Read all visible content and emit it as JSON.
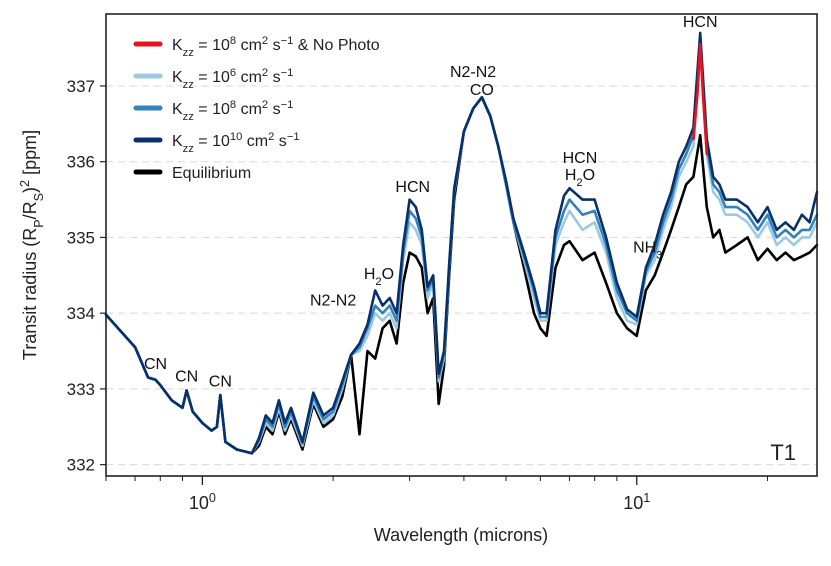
{
  "chart_data": {
    "type": "line",
    "title": "",
    "xlabel": "Wavelength (microns)",
    "ylabel_parts": [
      "Transit radius (R",
      "P",
      "/R",
      "S",
      ")",
      "2",
      " [ppm]"
    ],
    "x_scale": "log",
    "xlim": [
      0.6,
      26
    ],
    "ylim": [
      331.85,
      337.95
    ],
    "yticks": [
      332,
      333,
      334,
      335,
      336,
      337
    ],
    "yticks_labels": [
      "332",
      "333",
      "334",
      "335",
      "336",
      "337"
    ],
    "xticks_major": [
      1,
      10
    ],
    "xticks_major_base": "10",
    "xticks_major_exp": [
      "0",
      "1"
    ],
    "grid": "horizontal-dashed",
    "panel_label": "T1",
    "legend": [
      {
        "key": "red",
        "color": "#e8141c",
        "parts": [
          "K",
          "zz",
          " = 10",
          "8",
          " cm",
          "2",
          " s",
          "−1",
          " & No Photo"
        ]
      },
      {
        "key": "k6",
        "color": "#9ecae1",
        "parts": [
          "K",
          "zz",
          " = 10",
          "6",
          " cm",
          "2",
          " s",
          "−1",
          ""
        ]
      },
      {
        "key": "k8",
        "color": "#3182bd",
        "parts": [
          "K",
          "zz",
          " = 10",
          "8",
          " cm",
          "2",
          " s",
          "−1",
          ""
        ]
      },
      {
        "key": "k10",
        "color": "#08306b",
        "parts": [
          "K",
          "zz",
          " = 10",
          "10",
          " cm",
          "2",
          " s",
          "−1",
          ""
        ]
      },
      {
        "key": "eq",
        "color": "#000000",
        "parts": [
          "Equilibrium",
          "",
          "",
          "",
          "",
          "",
          "",
          "",
          ""
        ]
      }
    ],
    "annotations": [
      {
        "text": "CN",
        "x": 0.78,
        "y": 333.26
      },
      {
        "text": "CN",
        "x": 0.92,
        "y": 333.1
      },
      {
        "text": "CN",
        "x": 1.1,
        "y": 333.03
      },
      {
        "text": "N2-N2",
        "x": 2.0,
        "y": 334.1
      },
      {
        "text": "H2O",
        "x": 2.55,
        "y": 334.45
      },
      {
        "text": "HCN",
        "x": 3.05,
        "y": 335.6
      },
      {
        "text": "N2-N2",
        "x": 4.2,
        "y": 337.12
      },
      {
        "text": "CO",
        "x": 4.4,
        "y": 336.88
      },
      {
        "text": "HCN",
        "x": 7.4,
        "y": 335.98
      },
      {
        "text": "H2O",
        "x": 7.4,
        "y": 335.76
      },
      {
        "text": "NH3",
        "x": 10.6,
        "y": 334.8
      },
      {
        "text": "HCN",
        "x": 14.0,
        "y": 337.78
      }
    ],
    "series": [
      {
        "name": "Equilibrium",
        "color": "#000000",
        "x": [
          0.6,
          0.7,
          0.75,
          0.78,
          0.8,
          0.85,
          0.9,
          0.92,
          0.95,
          1.0,
          1.05,
          1.08,
          1.1,
          1.13,
          1.2,
          1.3,
          1.35,
          1.4,
          1.45,
          1.5,
          1.55,
          1.6,
          1.7,
          1.8,
          1.9,
          2.0,
          2.1,
          2.2,
          2.3,
          2.4,
          2.5,
          2.6,
          2.7,
          2.8,
          2.9,
          3.0,
          3.1,
          3.2,
          3.3,
          3.4,
          3.5,
          3.6,
          3.7,
          3.8,
          4.0,
          4.2,
          4.4,
          4.6,
          4.8,
          5.0,
          5.2,
          5.5,
          5.8,
          6.0,
          6.2,
          6.5,
          6.8,
          7.0,
          7.5,
          8.0,
          8.5,
          9.0,
          9.5,
          10.0,
          10.5,
          11.0,
          11.5,
          12.0,
          12.5,
          13.0,
          13.5,
          14.0,
          14.5,
          15.0,
          15.5,
          16.0,
          17.0,
          18.0,
          19.0,
          20.0,
          21.0,
          22.0,
          23.0,
          24.0,
          25.0,
          26.0
        ],
        "y": [
          333.98,
          333.55,
          333.15,
          333.12,
          333.05,
          332.85,
          332.75,
          332.98,
          332.7,
          332.55,
          332.45,
          332.5,
          332.92,
          332.3,
          332.2,
          332.15,
          332.25,
          332.5,
          332.4,
          332.7,
          332.4,
          332.6,
          332.2,
          332.8,
          332.5,
          332.6,
          332.9,
          333.45,
          332.4,
          333.5,
          333.4,
          333.8,
          333.9,
          333.6,
          334.4,
          334.8,
          334.75,
          334.6,
          334.0,
          334.2,
          332.8,
          333.3,
          334.5,
          335.5,
          336.4,
          336.7,
          336.85,
          336.6,
          336.2,
          335.7,
          335.2,
          334.6,
          334.0,
          333.8,
          333.7,
          334.6,
          334.9,
          334.95,
          334.7,
          334.8,
          334.4,
          334.0,
          333.8,
          333.7,
          334.3,
          334.5,
          334.8,
          335.1,
          335.4,
          335.7,
          335.8,
          336.35,
          335.4,
          335.0,
          335.1,
          334.8,
          334.9,
          335.0,
          334.7,
          334.85,
          334.7,
          334.8,
          334.7,
          334.75,
          334.8,
          334.9
        ]
      },
      {
        "name": "Kzz = 10^6 cm2 s-1",
        "color": "#9ecae1",
        "x": [
          0.6,
          0.7,
          0.75,
          0.78,
          0.8,
          0.85,
          0.9,
          0.92,
          0.95,
          1.0,
          1.05,
          1.08,
          1.1,
          1.13,
          1.2,
          1.3,
          1.35,
          1.4,
          1.45,
          1.5,
          1.55,
          1.6,
          1.7,
          1.8,
          1.9,
          2.0,
          2.1,
          2.2,
          2.3,
          2.4,
          2.5,
          2.6,
          2.7,
          2.8,
          2.9,
          3.0,
          3.1,
          3.2,
          3.3,
          3.4,
          3.5,
          3.6,
          3.7,
          3.8,
          4.0,
          4.2,
          4.4,
          4.6,
          4.8,
          5.0,
          5.2,
          5.5,
          5.8,
          6.0,
          6.2,
          6.5,
          6.8,
          7.0,
          7.5,
          8.0,
          8.5,
          9.0,
          9.5,
          10.0,
          10.5,
          11.0,
          11.5,
          12.0,
          12.5,
          13.0,
          13.5,
          14.0,
          14.5,
          15.0,
          15.5,
          16.0,
          17.0,
          18.0,
          19.0,
          20.0,
          21.0,
          22.0,
          23.0,
          24.0,
          25.0,
          26.0
        ],
        "y": [
          333.98,
          333.55,
          333.15,
          333.12,
          333.05,
          332.85,
          332.75,
          332.98,
          332.7,
          332.55,
          332.45,
          332.5,
          332.92,
          332.3,
          332.2,
          332.15,
          332.3,
          332.55,
          332.45,
          332.75,
          332.45,
          332.65,
          332.25,
          332.85,
          332.55,
          332.65,
          333.0,
          333.45,
          333.5,
          333.7,
          334.0,
          333.9,
          334.0,
          333.8,
          334.7,
          335.2,
          335.1,
          334.9,
          334.2,
          334.4,
          333.1,
          333.4,
          334.6,
          335.6,
          336.4,
          336.7,
          336.85,
          336.6,
          336.2,
          335.7,
          335.2,
          334.7,
          334.2,
          333.9,
          333.9,
          334.9,
          335.2,
          335.35,
          335.1,
          335.2,
          334.8,
          334.2,
          333.9,
          333.85,
          334.5,
          334.7,
          335.1,
          335.4,
          335.8,
          336.0,
          336.2,
          337.5,
          336.1,
          335.6,
          335.5,
          335.3,
          335.3,
          335.2,
          335.0,
          335.2,
          334.9,
          335.0,
          334.9,
          335.0,
          335.0,
          335.2
        ]
      },
      {
        "name": "Kzz = 10^8 cm2 s-1",
        "color": "#3182bd",
        "x": [
          0.6,
          0.7,
          0.75,
          0.78,
          0.8,
          0.85,
          0.9,
          0.92,
          0.95,
          1.0,
          1.05,
          1.08,
          1.1,
          1.13,
          1.2,
          1.3,
          1.35,
          1.4,
          1.45,
          1.5,
          1.55,
          1.6,
          1.7,
          1.8,
          1.9,
          2.0,
          2.1,
          2.2,
          2.3,
          2.4,
          2.5,
          2.6,
          2.7,
          2.8,
          2.9,
          3.0,
          3.1,
          3.2,
          3.3,
          3.4,
          3.5,
          3.6,
          3.7,
          3.8,
          4.0,
          4.2,
          4.4,
          4.6,
          4.8,
          5.0,
          5.2,
          5.5,
          5.8,
          6.0,
          6.2,
          6.5,
          6.8,
          7.0,
          7.5,
          8.0,
          8.5,
          9.0,
          9.5,
          10.0,
          10.5,
          11.0,
          11.5,
          12.0,
          12.5,
          13.0,
          13.5,
          14.0,
          14.5,
          15.0,
          15.5,
          16.0,
          17.0,
          18.0,
          19.0,
          20.0,
          21.0,
          22.0,
          23.0,
          24.0,
          25.0,
          26.0
        ],
        "y": [
          333.98,
          333.55,
          333.15,
          333.12,
          333.05,
          332.85,
          332.75,
          332.98,
          332.7,
          332.55,
          332.45,
          332.5,
          332.92,
          332.3,
          332.2,
          332.15,
          332.32,
          332.6,
          332.5,
          332.8,
          332.5,
          332.7,
          332.28,
          332.9,
          332.6,
          332.7,
          333.05,
          333.45,
          333.55,
          333.8,
          334.1,
          334.0,
          334.1,
          333.9,
          334.8,
          335.35,
          335.25,
          335.0,
          334.3,
          334.45,
          333.15,
          333.45,
          334.6,
          335.6,
          336.4,
          336.7,
          336.85,
          336.6,
          336.2,
          335.7,
          335.2,
          334.75,
          334.3,
          333.95,
          333.95,
          335.0,
          335.35,
          335.5,
          335.3,
          335.35,
          334.9,
          334.3,
          334.0,
          333.9,
          334.55,
          334.8,
          335.2,
          335.5,
          335.9,
          336.1,
          336.35,
          337.6,
          336.2,
          335.7,
          335.6,
          335.4,
          335.4,
          335.3,
          335.1,
          335.3,
          335.0,
          335.1,
          335.0,
          335.1,
          335.1,
          335.3
        ]
      },
      {
        "name": "Kzz = 10^10 cm2 s-1",
        "color": "#08306b",
        "x": [
          0.6,
          0.7,
          0.75,
          0.78,
          0.8,
          0.85,
          0.9,
          0.92,
          0.95,
          1.0,
          1.05,
          1.08,
          1.1,
          1.13,
          1.2,
          1.3,
          1.35,
          1.4,
          1.45,
          1.5,
          1.55,
          1.6,
          1.7,
          1.8,
          1.9,
          2.0,
          2.1,
          2.2,
          2.3,
          2.4,
          2.5,
          2.6,
          2.7,
          2.8,
          2.9,
          3.0,
          3.1,
          3.2,
          3.3,
          3.4,
          3.5,
          3.6,
          3.7,
          3.8,
          4.0,
          4.2,
          4.4,
          4.6,
          4.8,
          5.0,
          5.2,
          5.5,
          5.8,
          6.0,
          6.2,
          6.5,
          6.8,
          7.0,
          7.5,
          8.0,
          8.5,
          9.0,
          9.5,
          10.0,
          10.5,
          11.0,
          11.5,
          12.0,
          12.5,
          13.0,
          13.5,
          14.0,
          14.5,
          15.0,
          15.5,
          16.0,
          17.0,
          18.0,
          19.0,
          20.0,
          21.0,
          22.0,
          23.0,
          24.0,
          25.0,
          26.0
        ],
        "y": [
          333.98,
          333.55,
          333.15,
          333.12,
          333.05,
          332.85,
          332.75,
          332.98,
          332.7,
          332.55,
          332.45,
          332.5,
          332.92,
          332.3,
          332.2,
          332.15,
          332.35,
          332.65,
          332.55,
          332.85,
          332.55,
          332.75,
          332.3,
          332.95,
          332.65,
          332.75,
          333.1,
          333.45,
          333.6,
          333.85,
          334.3,
          334.1,
          334.2,
          334.0,
          334.9,
          335.5,
          335.4,
          335.1,
          334.35,
          334.5,
          333.2,
          333.5,
          334.65,
          335.65,
          336.4,
          336.7,
          336.85,
          336.6,
          336.2,
          335.75,
          335.25,
          334.8,
          334.35,
          334.0,
          334.0,
          335.1,
          335.55,
          335.65,
          335.5,
          335.5,
          335.0,
          334.4,
          334.05,
          333.95,
          334.6,
          334.9,
          335.3,
          335.6,
          336.0,
          336.2,
          336.45,
          337.7,
          336.3,
          335.8,
          335.7,
          335.5,
          335.5,
          335.4,
          335.2,
          335.4,
          335.1,
          335.2,
          335.1,
          335.3,
          335.2,
          335.6
        ]
      },
      {
        "name": "Kzz = 10^8 cm2 s-1 & No Photo",
        "color": "#e8141c",
        "x": [
          13.5,
          13.8,
          14.0,
          14.2,
          14.5
        ],
        "y": [
          336.3,
          336.9,
          337.55,
          336.9,
          336.1
        ]
      }
    ]
  }
}
